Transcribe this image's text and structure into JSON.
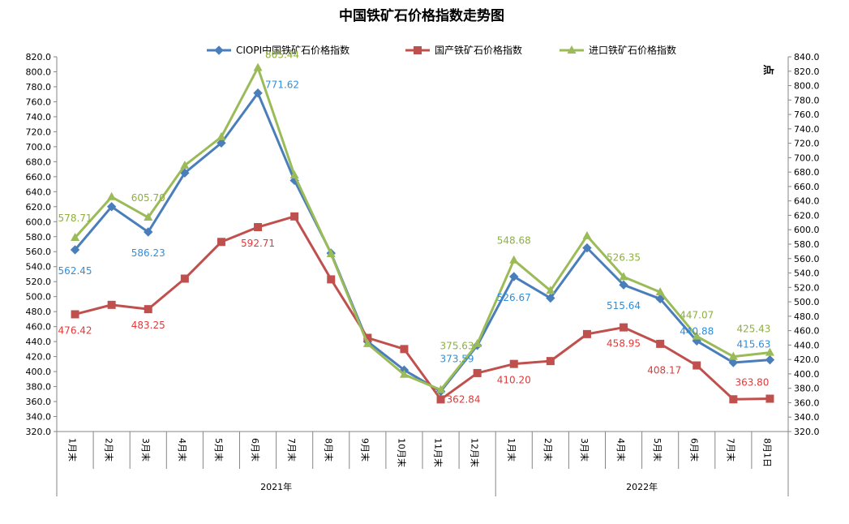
{
  "chart_data": {
    "type": "line",
    "title": "中国铁矿石价格指数走势图",
    "y_unit_label": "点",
    "ylim": [
      320,
      820
    ],
    "ytick_step": 20,
    "y2lim": [
      320,
      840
    ],
    "y2tick_step": 20,
    "categories": [
      "1月末",
      "2月末",
      "3月末",
      "4月末",
      "5月末",
      "6月末",
      "7月末",
      "8月末",
      "9月末",
      "10月末",
      "11月末",
      "12月末",
      "1月末",
      "2月末",
      "3月末",
      "4月末",
      "5月末",
      "6月末",
      "7月末",
      "8月1日"
    ],
    "year_groups": [
      {
        "label": "2021年",
        "start": 0,
        "end": 11
      },
      {
        "label": "2022年",
        "start": 12,
        "end": 19
      }
    ],
    "series": [
      {
        "name": "CIOPI中国铁矿石价格指数",
        "color": "#4a7ebb",
        "marker": "diamond",
        "values": [
          562.45,
          620,
          586.23,
          665,
          705,
          771.62,
          655,
          558,
          440,
          402,
          373.59,
          435,
          526.67,
          498,
          565,
          515.64,
          497,
          440.88,
          412,
          415.63
        ],
        "labels": {
          "0": "562.45",
          "2": "586.23",
          "5": "771.62",
          "10": "373.59",
          "12": "526.67",
          "15": "515.64",
          "17": "440.88",
          "19": "415.63"
        },
        "label_color": "#2f8fdc"
      },
      {
        "name": "国产铁矿石价格指数",
        "color": "#c0504d",
        "marker": "square",
        "values": [
          476.42,
          489,
          483.25,
          524,
          573,
          592.71,
          607,
          523,
          445,
          430,
          362.84,
          398,
          410.2,
          414,
          450,
          458.95,
          437,
          408.17,
          363,
          363.8
        ],
        "labels": {
          "0": "476.42",
          "2": "483.25",
          "5": "592.71",
          "10": "362.84",
          "12": "410.20",
          "15": "458.95",
          "17": "408.17",
          "19": "363.80"
        },
        "label_color": "#e03a3a"
      },
      {
        "name": "进口铁矿石价格指数",
        "color": "#9bbb59",
        "marker": "triangle",
        "values": [
          578.71,
          633,
          605.7,
          675,
          713,
          805.44,
          662,
          557,
          437,
          396,
          375.63,
          437,
          548.68,
          508,
          581,
          526.35,
          506,
          447.07,
          420,
          425.43
        ],
        "labels": {
          "0": "578.71",
          "2": "605.70",
          "5": "805.44",
          "10": "375.63",
          "12": "548.68",
          "15": "526.35",
          "17": "447.07",
          "19": "425.43"
        },
        "label_color": "#8db03e"
      }
    ]
  }
}
